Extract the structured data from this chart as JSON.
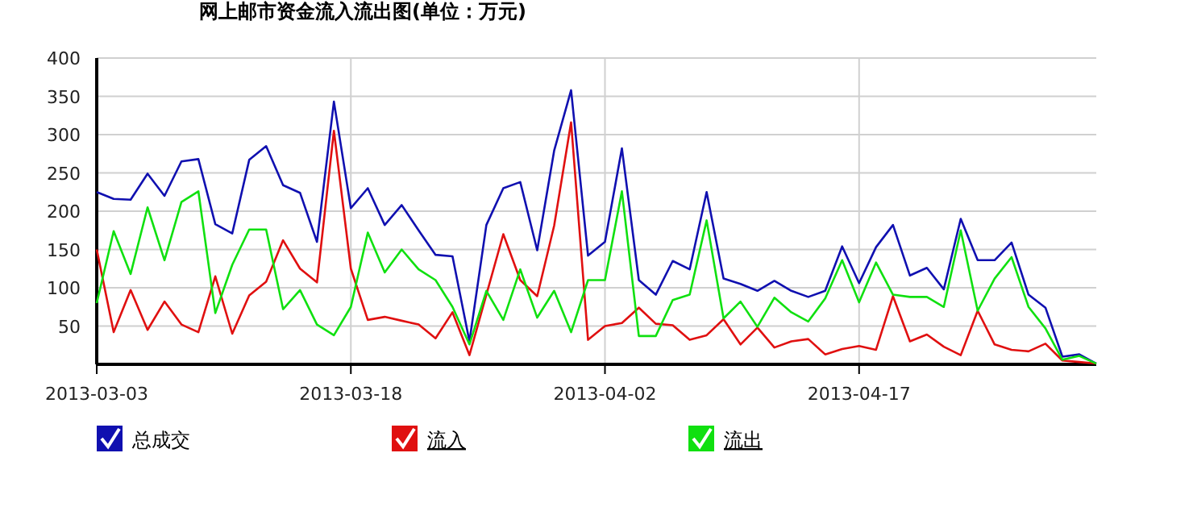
{
  "chart_data": {
    "type": "line",
    "title": "网上邮市资金流入流出图(单位：万元)",
    "x": [
      "2013-03-03",
      "2013-03-04",
      "2013-03-05",
      "2013-03-06",
      "2013-03-07",
      "2013-03-08",
      "2013-03-09",
      "2013-03-10",
      "2013-03-11",
      "2013-03-12",
      "2013-03-13",
      "2013-03-14",
      "2013-03-15",
      "2013-03-16",
      "2013-03-17",
      "2013-03-18",
      "2013-03-19",
      "2013-03-20",
      "2013-03-21",
      "2013-03-22",
      "2013-03-23",
      "2013-03-24",
      "2013-03-25",
      "2013-03-26",
      "2013-03-27",
      "2013-03-28",
      "2013-03-29",
      "2013-03-30",
      "2013-03-31",
      "2013-04-01",
      "2013-04-02",
      "2013-04-03",
      "2013-04-04",
      "2013-04-05",
      "2013-04-06",
      "2013-04-07",
      "2013-04-08",
      "2013-04-09",
      "2013-04-10",
      "2013-04-11",
      "2013-04-12",
      "2013-04-13",
      "2013-04-14",
      "2013-04-15",
      "2013-04-16",
      "2013-04-17",
      "2013-04-18",
      "2013-04-19",
      "2013-04-20",
      "2013-04-21",
      "2013-04-22",
      "2013-04-23",
      "2013-04-24",
      "2013-04-25",
      "2013-04-26",
      "2013-04-27",
      "2013-04-28",
      "2013-04-29",
      "2013-04-30",
      "2013-05-01"
    ],
    "series": [
      {
        "name": "总成交",
        "color": "#1010b0",
        "values": [
          225,
          216,
          215,
          249,
          220,
          265,
          268,
          183,
          171,
          267,
          285,
          234,
          224,
          160,
          343,
          204,
          230,
          182,
          208,
          175,
          143,
          141,
          30,
          182,
          230,
          238,
          149,
          279,
          358,
          142,
          160,
          282,
          110,
          91,
          135,
          124,
          225,
          112,
          105,
          96,
          109,
          96,
          88,
          96,
          154,
          106,
          153,
          182,
          116,
          126,
          98,
          190,
          136,
          136,
          159,
          91,
          74,
          10,
          13,
          1
        ]
      },
      {
        "name": "流入",
        "color": "#e01010",
        "values": [
          150,
          42,
          97,
          45,
          82,
          52,
          42,
          115,
          40,
          90,
          108,
          162,
          125,
          107,
          305,
          125,
          58,
          62,
          57,
          52,
          34,
          68,
          12,
          91,
          170,
          110,
          89,
          181,
          316,
          32,
          50,
          54,
          74,
          53,
          51,
          32,
          38,
          59,
          26,
          48,
          22,
          30,
          33,
          13,
          20,
          24,
          19,
          89,
          30,
          39,
          23,
          12,
          70,
          26,
          19,
          17,
          27,
          5,
          3,
          1
        ]
      },
      {
        "name": "流出",
        "color": "#10e010",
        "values": [
          80,
          174,
          118,
          205,
          136,
          212,
          226,
          67,
          130,
          176,
          176,
          72,
          97,
          52,
          38,
          75,
          172,
          120,
          150,
          124,
          110,
          75,
          26,
          96,
          58,
          124,
          61,
          96,
          42,
          110,
          110,
          226,
          37,
          37,
          84,
          91,
          188,
          60,
          82,
          49,
          87,
          68,
          56,
          86,
          136,
          81,
          133,
          91,
          88,
          88,
          75,
          175,
          70,
          112,
          140,
          75,
          47,
          6,
          11,
          1
        ]
      }
    ],
    "xlim": [
      "2013-03-03",
      "2013-05-01"
    ],
    "xticks": [
      "2013-03-03",
      "2013-03-18",
      "2013-04-02",
      "2013-04-17"
    ],
    "ylim": [
      0,
      400
    ],
    "yticks": [
      50,
      100,
      150,
      200,
      250,
      300,
      350,
      400
    ],
    "grid": true,
    "legend": "bottom",
    "marker": "none",
    "line_style": "solid"
  }
}
